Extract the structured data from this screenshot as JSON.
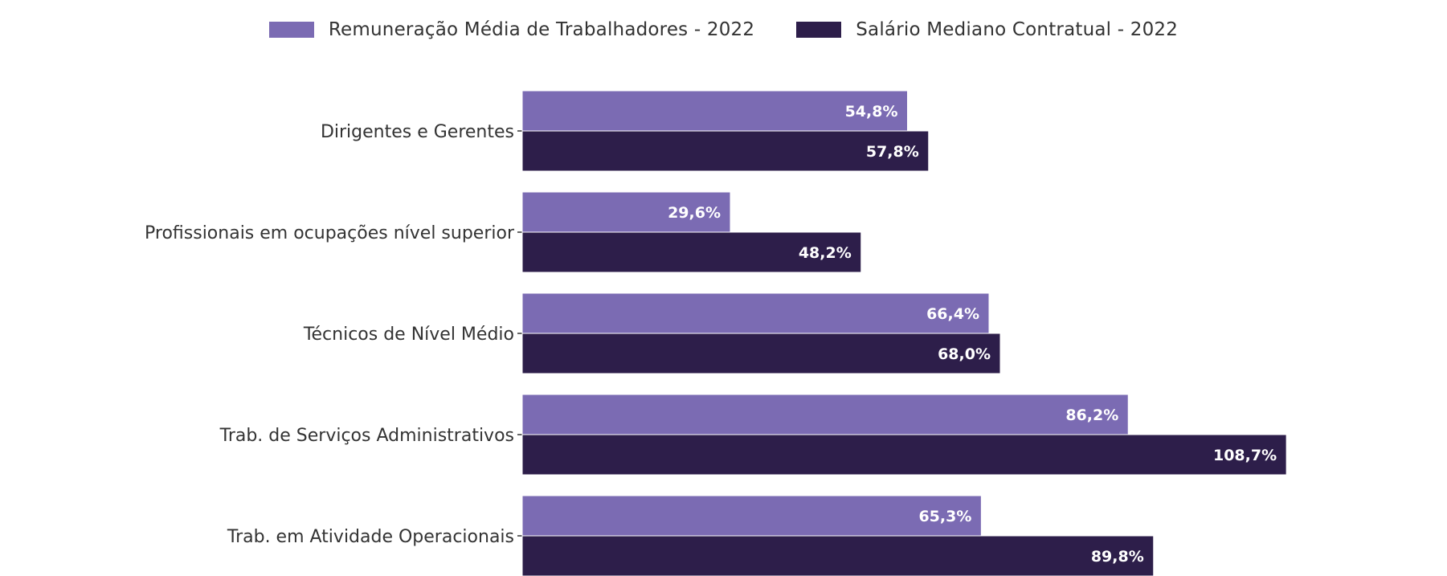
{
  "chart_data": {
    "type": "bar",
    "orientation": "horizontal",
    "categories": [
      "Dirigentes e Gerentes",
      "Profissionais em ocupações nível superior",
      "Técnicos de Nível Médio",
      "Trab. de Serviços Administrativos",
      "Trab. em Atividade Operacionais"
    ],
    "series": [
      {
        "name": "Remuneração Média de Trabalhadores - 2022",
        "values": [
          54.8,
          29.6,
          66.4,
          86.2,
          65.3
        ],
        "labels": [
          "54,8%",
          "29,6%",
          "66,4%",
          "86,2%",
          "65,3%"
        ],
        "color": "#7b6bb3"
      },
      {
        "name": "Salário Mediano Contratual - 2022",
        "values": [
          57.8,
          48.2,
          68.0,
          108.7,
          89.8
        ],
        "labels": [
          "57,8%",
          "48,2%",
          "68,0%",
          "108,7%",
          "89,8%"
        ],
        "color": "#2d1e4a"
      }
    ],
    "xlim": [
      0,
      120
    ],
    "grid": false,
    "legend_position": "top-center",
    "data_label_color": "#ffffff",
    "axis_label_color": "#333333"
  }
}
